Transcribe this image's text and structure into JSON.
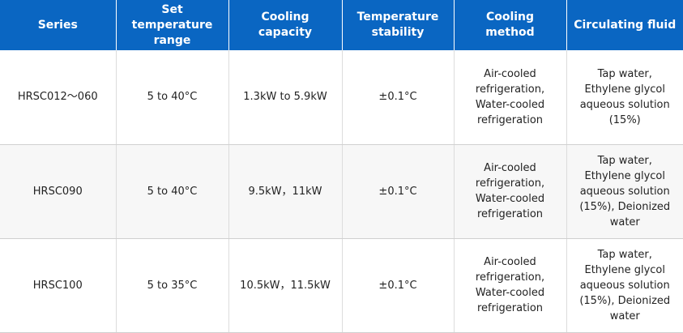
{
  "table": {
    "headers": [
      "Series",
      "Set temperature\nrange",
      "Cooling capacity",
      "Temperature\nstability",
      "Cooling method",
      "Circulating fluid"
    ],
    "rows": [
      {
        "series": "HRSC012～060",
        "temp_range": "5 to 40°C",
        "capacity": "1.3kW to 5.9kW",
        "stability": "±0.1°C",
        "cooling_method": "Air-cooled\nrefrigeration,\nWater-cooled\nrefrigeration",
        "fluid": "Tap water,\nEthylene glycol\naqueous solution\n(15%)"
      },
      {
        "series": "HRSC090",
        "temp_range": "5 to 40°C",
        "capacity": "9.5kW，11kW",
        "stability": "±0.1°C",
        "cooling_method": "Air-cooled\nrefrigeration,\nWater-cooled\nrefrigeration",
        "fluid": "Tap water,\nEthylene glycol\naqueous solution\n(15%), Deionized\nwater"
      },
      {
        "series": "HRSC100",
        "temp_range": "5 to 35°C",
        "capacity": "10.5kW，11.5kW",
        "stability": "±0.1°C",
        "cooling_method": "Air-cooled\nrefrigeration,\nWater-cooled\nrefrigeration",
        "fluid": "Tap water,\nEthylene glycol\naqueous solution\n(15%), Deionized\nwater"
      }
    ]
  },
  "colors": {
    "header_bg": "#0a66c2",
    "header_text": "#ffffff",
    "row_alt_bg": "#f7f7f7"
  }
}
